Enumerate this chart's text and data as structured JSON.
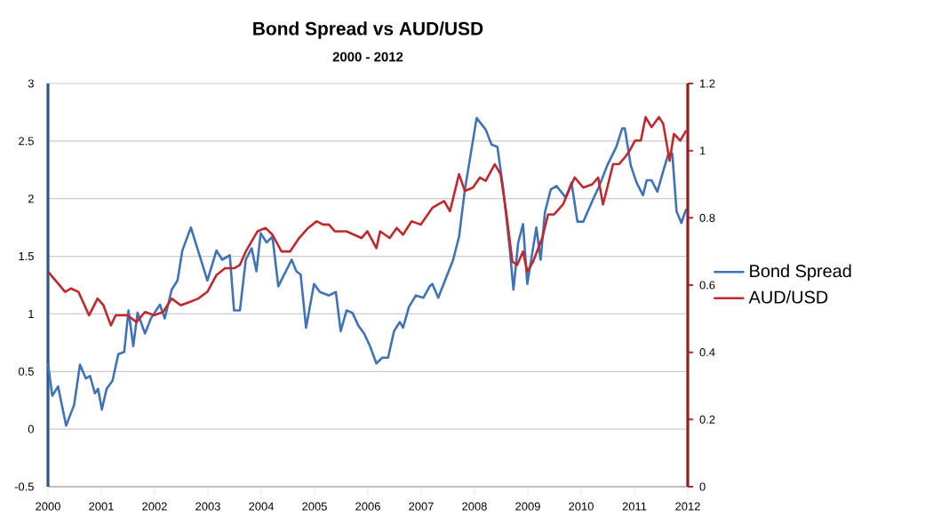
{
  "chart_data": {
    "type": "line",
    "title": "Bond Spread vs AUD/USD",
    "subtitle": "2000 - 2012",
    "xlim": [
      2000,
      2012
    ],
    "xticks": [
      2000,
      2001,
      2002,
      2003,
      2004,
      2005,
      2006,
      2007,
      2008,
      2009,
      2010,
      2011,
      2012
    ],
    "ylim": [
      -0.5,
      3
    ],
    "yticks": [
      -0.5,
      0,
      0.5,
      1,
      1.5,
      2,
      2.5,
      3
    ],
    "y2lim": [
      0,
      1.2
    ],
    "y2ticks": [
      0,
      0.2,
      0.4,
      0.6,
      0.8,
      1,
      1.2
    ],
    "grid": "y",
    "legend": "right",
    "series": [
      {
        "name": "Bond Spread",
        "color": "#3f72b8",
        "x": [
          2000.0,
          2000.08,
          2000.19,
          2000.34,
          2000.49,
          2000.6,
          2000.71,
          2000.79,
          2000.88,
          2000.94,
          2001.01,
          2001.1,
          2001.21,
          2001.32,
          2001.43,
          2001.51,
          2001.6,
          2001.68,
          2001.82,
          2001.93,
          2002.1,
          2002.19,
          2002.32,
          2002.43,
          2002.52,
          2002.68,
          2002.99,
          2003.16,
          2003.27,
          2003.41,
          2003.49,
          2003.6,
          2003.71,
          2003.82,
          2003.91,
          2003.99,
          2004.1,
          2004.21,
          2004.32,
          2004.57,
          2004.66,
          2004.74,
          2004.84,
          2004.99,
          2005.1,
          2005.27,
          2005.4,
          2005.49,
          2005.6,
          2005.71,
          2005.82,
          2005.93,
          2006.04,
          2006.16,
          2006.27,
          2006.38,
          2006.49,
          2006.6,
          2006.66,
          2006.77,
          2006.9,
          2007.04,
          2007.16,
          2007.21,
          2007.32,
          2007.49,
          2007.6,
          2007.71,
          2007.82,
          2007.93,
          2008.04,
          2008.21,
          2008.32,
          2008.43,
          2008.54,
          2008.66,
          2008.73,
          2008.82,
          2008.91,
          2008.99,
          2009.16,
          2009.24,
          2009.32,
          2009.43,
          2009.54,
          2009.71,
          2009.82,
          2009.93,
          2010.04,
          2010.21,
          2010.34,
          2010.49,
          2010.66,
          2010.77,
          2010.82,
          2010.93,
          2011.04,
          2011.16,
          2011.23,
          2011.32,
          2011.43,
          2011.54,
          2011.63,
          2011.71,
          2011.79,
          2011.88,
          2011.97
        ],
        "values": [
          0.57,
          0.29,
          0.37,
          0.03,
          0.21,
          0.56,
          0.44,
          0.46,
          0.31,
          0.35,
          0.17,
          0.35,
          0.42,
          0.65,
          0.67,
          1.03,
          0.72,
          1.01,
          0.83,
          0.96,
          1.08,
          0.96,
          1.21,
          1.29,
          1.55,
          1.75,
          1.29,
          1.55,
          1.47,
          1.51,
          1.03,
          1.03,
          1.47,
          1.57,
          1.37,
          1.7,
          1.62,
          1.67,
          1.24,
          1.47,
          1.37,
          1.34,
          0.88,
          1.26,
          1.19,
          1.16,
          1.19,
          0.85,
          1.03,
          1.01,
          0.9,
          0.83,
          0.72,
          0.57,
          0.62,
          0.62,
          0.85,
          0.93,
          0.88,
          1.06,
          1.16,
          1.14,
          1.24,
          1.26,
          1.14,
          1.34,
          1.47,
          1.67,
          2.08,
          2.39,
          2.7,
          2.6,
          2.47,
          2.45,
          2.08,
          1.57,
          1.21,
          1.62,
          1.78,
          1.26,
          1.75,
          1.47,
          1.88,
          2.08,
          2.11,
          2.01,
          2.14,
          1.8,
          1.8,
          1.98,
          2.11,
          2.29,
          2.45,
          2.61,
          2.61,
          2.29,
          2.14,
          2.03,
          2.16,
          2.16,
          2.06,
          2.24,
          2.38,
          2.39,
          1.89,
          1.79,
          1.91
        ]
      },
      {
        "name": "AUD/USD",
        "color": "#c0282d",
        "axis": "y2",
        "x": [
          2000.0,
          2000.16,
          2000.32,
          2000.43,
          2000.57,
          2000.77,
          2000.93,
          2001.04,
          2001.18,
          2001.27,
          2001.49,
          2001.66,
          2001.82,
          2001.99,
          2002.16,
          2002.32,
          2002.49,
          2002.66,
          2002.82,
          2002.99,
          2003.16,
          2003.32,
          2003.49,
          2003.6,
          2003.71,
          2003.93,
          2004.08,
          2004.21,
          2004.38,
          2004.54,
          2004.71,
          2004.88,
          2005.04,
          2005.16,
          2005.27,
          2005.38,
          2005.6,
          2005.88,
          2005.99,
          2006.16,
          2006.23,
          2006.41,
          2006.54,
          2006.66,
          2006.82,
          2006.99,
          2007.21,
          2007.43,
          2007.54,
          2007.71,
          2007.82,
          2007.97,
          2008.1,
          2008.21,
          2008.38,
          2008.49,
          2008.6,
          2008.71,
          2008.8,
          2008.91,
          2008.99,
          2009.1,
          2009.27,
          2009.38,
          2009.49,
          2009.66,
          2009.82,
          2009.88,
          2010.04,
          2010.21,
          2010.32,
          2010.41,
          2010.49,
          2010.6,
          2010.71,
          2010.82,
          2010.91,
          2011.01,
          2011.12,
          2011.21,
          2011.32,
          2011.46,
          2011.54,
          2011.66,
          2011.74,
          2011.86,
          2011.97
        ],
        "values": [
          0.64,
          0.61,
          0.58,
          0.59,
          0.58,
          0.51,
          0.56,
          0.54,
          0.48,
          0.51,
          0.51,
          0.49,
          0.52,
          0.51,
          0.52,
          0.56,
          0.54,
          0.55,
          0.56,
          0.58,
          0.63,
          0.65,
          0.65,
          0.66,
          0.7,
          0.76,
          0.77,
          0.75,
          0.7,
          0.7,
          0.74,
          0.77,
          0.79,
          0.78,
          0.78,
          0.76,
          0.76,
          0.74,
          0.76,
          0.71,
          0.76,
          0.74,
          0.77,
          0.75,
          0.79,
          0.78,
          0.83,
          0.85,
          0.82,
          0.93,
          0.88,
          0.89,
          0.92,
          0.91,
          0.96,
          0.93,
          0.81,
          0.67,
          0.66,
          0.7,
          0.64,
          0.67,
          0.74,
          0.81,
          0.81,
          0.84,
          0.9,
          0.92,
          0.89,
          0.9,
          0.92,
          0.84,
          0.89,
          0.96,
          0.96,
          0.98,
          1.0,
          1.03,
          1.03,
          1.1,
          1.07,
          1.1,
          1.08,
          0.97,
          1.05,
          1.03,
          1.06
        ]
      }
    ]
  }
}
